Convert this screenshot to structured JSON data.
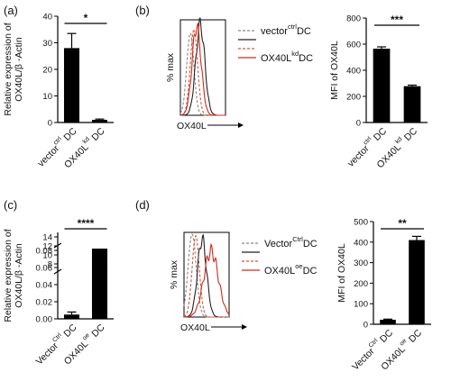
{
  "panels": {
    "a": "(a)",
    "b": "(b)",
    "c": "(c)",
    "d": "(d)"
  },
  "chart_data": [
    {
      "panel": "a",
      "type": "bar",
      "ylabel_line1": "Relative expression of",
      "ylabel_line2": "OX40L/β -Actin",
      "categories": [
        {
          "main": "vector",
          "sup": "ctrl",
          "tail": "DC"
        },
        {
          "main": "OX40L",
          "sup": "kd",
          "tail": "DC"
        }
      ],
      "values": [
        28,
        1
      ],
      "errors": [
        5.5,
        0.3
      ],
      "ylim": [
        0,
        40
      ],
      "yticks": [
        0,
        10,
        20,
        30,
        40
      ],
      "significance": "*"
    },
    {
      "panel": "b",
      "type": "histogram",
      "xlabel": "OX40L",
      "ylabel": "% max",
      "legend": [
        {
          "main": "vector",
          "sup": "ctrl",
          "tail": "DC",
          "color": "#888888",
          "dash": true
        },
        {
          "main": "",
          "sup": "",
          "tail": "",
          "color": "#222222",
          "dash": false
        },
        {
          "main": "",
          "sup": "",
          "tail": "",
          "color": "#e05040",
          "dash": true
        },
        {
          "main": "OX40L",
          "sup": "kd",
          "tail": "DC",
          "color": "#d42a1a",
          "dash": false
        }
      ]
    },
    {
      "panel": "b",
      "type": "bar",
      "ylabel": "MFI of OX40L",
      "categories": [
        {
          "main": "vector",
          "sup": "ctrl",
          "tail": "DC"
        },
        {
          "main": "OX40L",
          "sup": "kd",
          "tail": "DC"
        }
      ],
      "values": [
        565,
        278
      ],
      "errors": [
        14,
        8
      ],
      "ylim": [
        0,
        800
      ],
      "yticks": [
        0,
        200,
        400,
        600,
        800
      ],
      "significance": "***"
    },
    {
      "panel": "c",
      "type": "bar",
      "ylabel_line1": "Relative expression of",
      "ylabel_line2": "OX40L/β -Actin",
      "categories": [
        {
          "main": "Vector",
          "sup": "Ctrl",
          "tail": "DC"
        },
        {
          "main": "OX40L",
          "sup": "oe",
          "tail": "DC"
        }
      ],
      "values": [
        0.005,
        8.1
      ],
      "errors": [
        0.003,
        0.25
      ],
      "broken_axis": {
        "lower_ylim": [
          0,
          0.08
        ],
        "upper_ylim": [
          7,
          15
        ],
        "lower_yticks": [
          "0.00",
          "0.02",
          "0.04",
          "0.06",
          "0.08"
        ],
        "upper_yticks": [
          "8",
          "10",
          "12",
          "14"
        ]
      },
      "significance": "****"
    },
    {
      "panel": "d",
      "type": "histogram",
      "xlabel": "OX40L",
      "ylabel": "% max",
      "legend": [
        {
          "main": "Vector",
          "sup": "Ctrl",
          "tail": "DC",
          "color": "#888888",
          "dash": true
        },
        {
          "main": "",
          "sup": "",
          "tail": "",
          "color": "#222222",
          "dash": false
        },
        {
          "main": "",
          "sup": "",
          "tail": "",
          "color": "#e05040",
          "dash": true
        },
        {
          "main": "OX40L",
          "sup": "oe",
          "tail": "DC",
          "color": "#d42a1a",
          "dash": false
        }
      ]
    },
    {
      "panel": "d",
      "type": "bar",
      "ylabel": "MFI of OX40L",
      "categories": [
        {
          "main": "Vector",
          "sup": "Ctrl",
          "tail": "DC"
        },
        {
          "main": "OX40L",
          "sup": "oe",
          "tail": "DC"
        }
      ],
      "values": [
        22,
        410
      ],
      "errors": [
        3,
        18
      ],
      "ylim": [
        0,
        500
      ],
      "yticks": [
        0,
        100,
        200,
        300,
        400,
        500
      ],
      "significance": "**"
    }
  ]
}
